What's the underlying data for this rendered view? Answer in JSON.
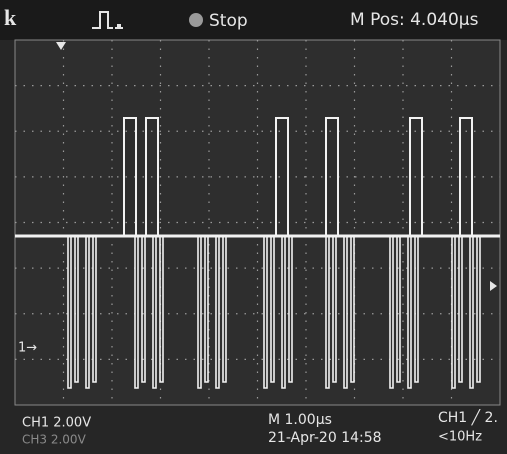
{
  "header": {
    "brand": "k",
    "status": "Stop",
    "position": "M Pos: 4.040µs"
  },
  "markers": {
    "ch1": "1→"
  },
  "footer": {
    "ch1_scale": "CH1  2.00V",
    "ch3_scale": "CH3  2.00V",
    "timebase": "M 1.00µs",
    "timestamp": "21-Apr-20 14:58",
    "trigger": "CH1 ╱ 2.",
    "frequency": "<10Hz"
  }
}
